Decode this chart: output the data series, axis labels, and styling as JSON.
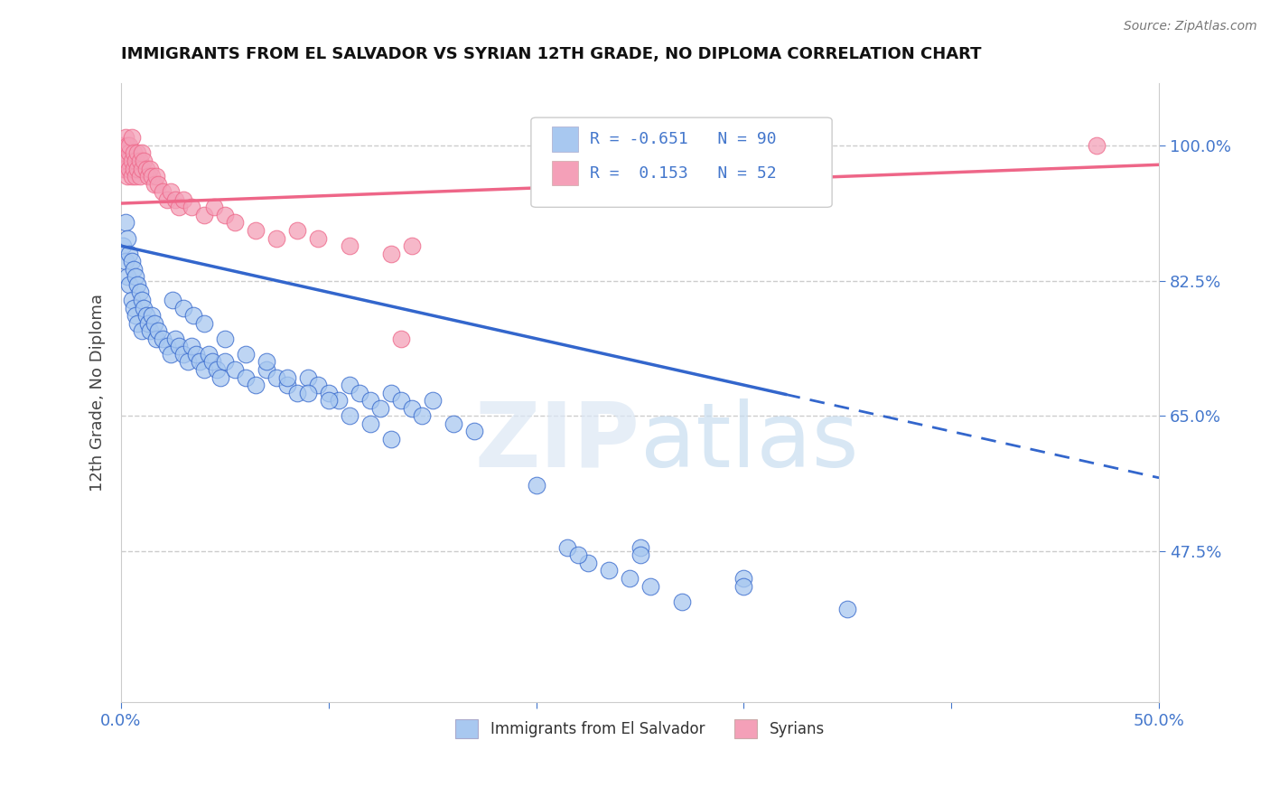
{
  "title": "IMMIGRANTS FROM EL SALVADOR VS SYRIAN 12TH GRADE, NO DIPLOMA CORRELATION CHART",
  "source": "Source: ZipAtlas.com",
  "ylabel": "12th Grade, No Diploma",
  "xlim": [
    0.0,
    0.5
  ],
  "ylim": [
    0.28,
    1.08
  ],
  "ytick_positions": [
    0.475,
    0.65,
    0.825,
    1.0
  ],
  "ytick_labels": [
    "47.5%",
    "65.0%",
    "82.5%",
    "100.0%"
  ],
  "color_salvador": "#a8c8f0",
  "color_syrian": "#f4a0b8",
  "color_line_salvador": "#3366cc",
  "color_line_syrian": "#ee6688",
  "background_color": "#ffffff",
  "el_salvador_x": [
    0.001,
    0.002,
    0.002,
    0.003,
    0.003,
    0.004,
    0.004,
    0.005,
    0.005,
    0.006,
    0.006,
    0.007,
    0.007,
    0.008,
    0.008,
    0.009,
    0.01,
    0.01,
    0.011,
    0.012,
    0.013,
    0.014,
    0.015,
    0.016,
    0.017,
    0.018,
    0.02,
    0.022,
    0.024,
    0.026,
    0.028,
    0.03,
    0.032,
    0.034,
    0.036,
    0.038,
    0.04,
    0.042,
    0.044,
    0.046,
    0.048,
    0.05,
    0.055,
    0.06,
    0.065,
    0.07,
    0.075,
    0.08,
    0.085,
    0.09,
    0.095,
    0.1,
    0.105,
    0.11,
    0.115,
    0.12,
    0.125,
    0.13,
    0.135,
    0.14,
    0.145,
    0.15,
    0.16,
    0.17,
    0.025,
    0.03,
    0.035,
    0.04,
    0.05,
    0.06,
    0.07,
    0.08,
    0.09,
    0.1,
    0.11,
    0.12,
    0.13,
    0.2,
    0.25,
    0.3,
    0.35,
    0.25,
    0.3,
    0.215,
    0.225,
    0.235,
    0.22,
    0.245,
    0.255,
    0.27
  ],
  "el_salvador_y": [
    0.87,
    0.9,
    0.85,
    0.88,
    0.83,
    0.86,
    0.82,
    0.85,
    0.8,
    0.84,
    0.79,
    0.83,
    0.78,
    0.82,
    0.77,
    0.81,
    0.8,
    0.76,
    0.79,
    0.78,
    0.77,
    0.76,
    0.78,
    0.77,
    0.75,
    0.76,
    0.75,
    0.74,
    0.73,
    0.75,
    0.74,
    0.73,
    0.72,
    0.74,
    0.73,
    0.72,
    0.71,
    0.73,
    0.72,
    0.71,
    0.7,
    0.72,
    0.71,
    0.7,
    0.69,
    0.71,
    0.7,
    0.69,
    0.68,
    0.7,
    0.69,
    0.68,
    0.67,
    0.69,
    0.68,
    0.67,
    0.66,
    0.68,
    0.67,
    0.66,
    0.65,
    0.67,
    0.64,
    0.63,
    0.8,
    0.79,
    0.78,
    0.77,
    0.75,
    0.73,
    0.72,
    0.7,
    0.68,
    0.67,
    0.65,
    0.64,
    0.62,
    0.56,
    0.48,
    0.44,
    0.4,
    0.47,
    0.43,
    0.48,
    0.46,
    0.45,
    0.47,
    0.44,
    0.43,
    0.41
  ],
  "syrian_x": [
    0.001,
    0.001,
    0.002,
    0.002,
    0.002,
    0.003,
    0.003,
    0.003,
    0.004,
    0.004,
    0.004,
    0.005,
    0.005,
    0.005,
    0.006,
    0.006,
    0.007,
    0.007,
    0.008,
    0.008,
    0.009,
    0.009,
    0.01,
    0.01,
    0.011,
    0.012,
    0.013,
    0.014,
    0.015,
    0.016,
    0.017,
    0.018,
    0.02,
    0.022,
    0.024,
    0.026,
    0.028,
    0.03,
    0.034,
    0.04,
    0.045,
    0.05,
    0.055,
    0.065,
    0.075,
    0.085,
    0.095,
    0.11,
    0.13,
    0.14,
    0.47,
    0.135
  ],
  "syrian_y": [
    0.97,
    1.0,
    0.99,
    0.97,
    1.01,
    0.98,
    0.96,
    1.0,
    0.99,
    0.97,
    1.0,
    0.98,
    0.96,
    1.01,
    0.97,
    0.99,
    0.98,
    0.96,
    0.97,
    0.99,
    0.98,
    0.96,
    0.97,
    0.99,
    0.98,
    0.97,
    0.96,
    0.97,
    0.96,
    0.95,
    0.96,
    0.95,
    0.94,
    0.93,
    0.94,
    0.93,
    0.92,
    0.93,
    0.92,
    0.91,
    0.92,
    0.91,
    0.9,
    0.89,
    0.88,
    0.89,
    0.88,
    0.87,
    0.86,
    0.87,
    1.0,
    0.75
  ],
  "trendline_es_x0": 0.0,
  "trendline_es_x1": 0.5,
  "trendline_es_y0": 0.87,
  "trendline_es_y1": 0.57,
  "trendline_es_solid_end": 0.32,
  "trendline_sy_x0": 0.0,
  "trendline_sy_x1": 0.5,
  "trendline_sy_y0": 0.925,
  "trendline_sy_y1": 0.975
}
